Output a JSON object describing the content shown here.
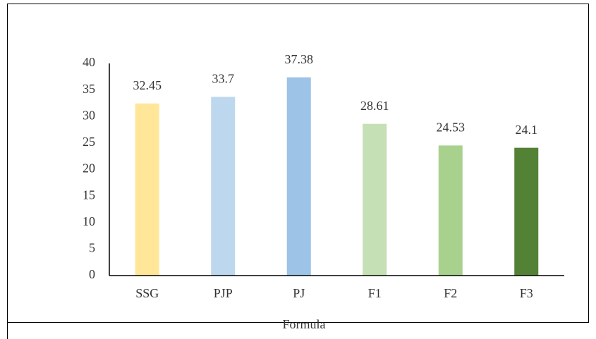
{
  "chart_data": {
    "type": "bar",
    "x_label": "Formula",
    "categories": [
      "SSG",
      "PJP",
      "PJ",
      "F1",
      "F2",
      "F3"
    ],
    "values": [
      32.45,
      33.7,
      37.38,
      28.61,
      24.53,
      24.1
    ],
    "colors": [
      "#ffe699",
      "#bdd7ee",
      "#9dc3e6",
      "#c5e0b4",
      "#a9d18e",
      "#538135"
    ],
    "ylim": [
      0,
      40
    ],
    "yticks": [
      0,
      5,
      10,
      15,
      20,
      25,
      30,
      35,
      40
    ],
    "grid": false
  }
}
